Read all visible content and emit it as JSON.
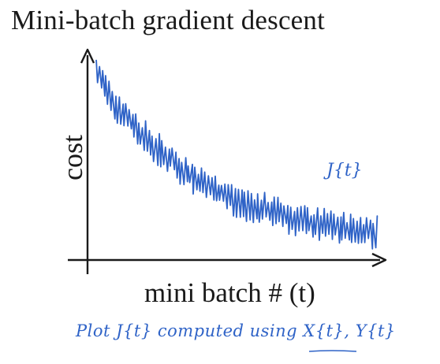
{
  "slide": {
    "title": "Mini-batch gradient descent",
    "annotation_cost": "J{t}",
    "annotation_plot": "Plot J{t} computed using X{t}, Y{t}"
  },
  "chart_data": {
    "type": "line",
    "xlabel": "mini batch # (t)",
    "ylabel": "cost",
    "grid": false,
    "legend": "none",
    "series": [
      {
        "style": "noisy decreasing",
        "color": "#2f63c7",
        "x": [
          0,
          5,
          10,
          15,
          20,
          25,
          30,
          35,
          40,
          45,
          50,
          55,
          60,
          65,
          70,
          75,
          80,
          85,
          90,
          95,
          100
        ],
        "y": [
          9.4,
          8.3,
          7.5,
          6.8,
          6.1,
          5.6,
          5.1,
          4.6,
          4.2,
          3.9,
          3.6,
          3.4,
          3.2,
          3.0,
          2.8,
          2.6,
          2.5,
          2.4,
          2.3,
          2.25,
          2.2
        ],
        "noise_amplitude": 0.8
      }
    ]
  }
}
